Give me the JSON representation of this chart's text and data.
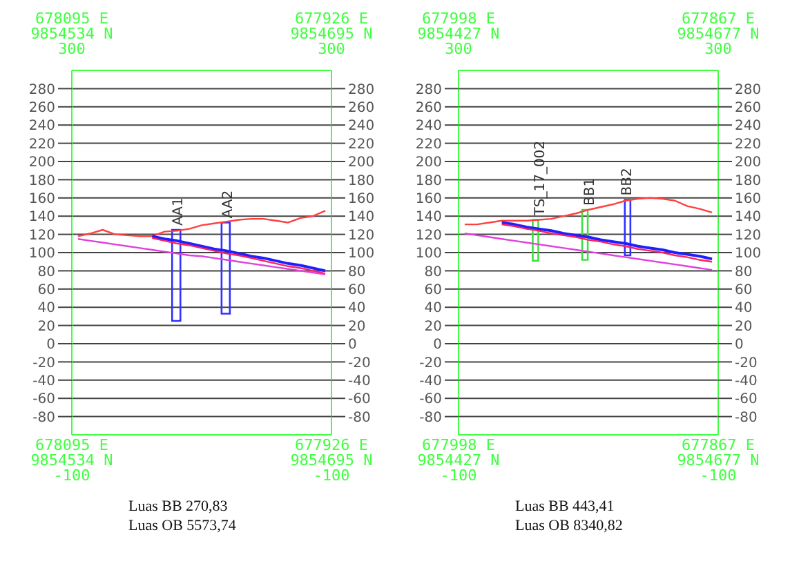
{
  "chart_data": [
    {
      "type": "line",
      "categories": [
        null,
        null,
        null,
        null,
        null,
        null,
        null,
        null,
        null,
        null,
        null,
        null,
        null,
        null,
        null,
        null,
        null,
        null,
        null,
        null,
        null
      ],
      "series": [
        {
          "color": "#ff4040",
          "values": [
            118,
            121,
            125,
            120,
            119,
            118,
            118,
            123,
            124,
            126,
            130,
            132,
            134,
            136,
            137,
            137,
            135,
            133,
            138,
            140,
            146
          ]
        },
        {
          "color": "#2020ff",
          "values": [
            null,
            null,
            null,
            null,
            null,
            null,
            118,
            115,
            113,
            110,
            107,
            104,
            102,
            99,
            96,
            94,
            91,
            88,
            86,
            83,
            80
          ]
        },
        {
          "color": "#ff2060",
          "values": [
            null,
            null,
            null,
            null,
            null,
            null,
            116,
            113,
            110,
            108,
            105,
            102,
            99,
            97,
            94,
            91,
            88,
            85,
            83,
            80,
            77
          ]
        },
        {
          "color": "#e040e0",
          "values": [
            115,
            113,
            111,
            109,
            107,
            105,
            103,
            101,
            99,
            97,
            96,
            94,
            92,
            90,
            88,
            86,
            84,
            82,
            80,
            78,
            76
          ]
        },
        {
          "type": "bar",
          "color": "#3030ff",
          "values": [
            null,
            null,
            null,
            null,
            null,
            null,
            null,
            null,
            100,
            null,
            null,
            null,
            100,
            null,
            null,
            null,
            null,
            null,
            null,
            null,
            null
          ],
          "base": [
            null,
            null,
            null,
            null,
            null,
            null,
            null,
            null,
            25,
            null,
            null,
            null,
            33,
            null,
            null,
            null,
            null,
            null,
            null,
            null,
            null
          ]
        }
      ],
      "ylim": [
        -100,
        300
      ],
      "yticks": [
        -80,
        -60,
        -40,
        -20,
        0,
        20,
        40,
        60,
        80,
        100,
        120,
        140,
        160,
        180,
        200,
        220,
        240,
        260,
        280
      ],
      "y2lim": [
        -100,
        300
      ],
      "y2ticks": [
        -80,
        -60,
        -40,
        -20,
        0,
        20,
        40,
        60,
        80,
        100,
        120,
        140,
        160,
        180,
        200,
        220,
        240,
        260,
        280
      ],
      "grid": "y",
      "tick_labels": "y",
      "annotations": [
        "678095 E\n9854534 N\n300",
        "677926 E\n9854695 N\n300",
        "678095 E\n9854534 N\n-100",
        "677926 E\n9854695 N\n-100",
        "Luas BB 270,83\nLuas OB 5573,74",
        {
          "text": "AA1",
          "y": 125
        },
        {
          "text": "AA2",
          "y": 133
        }
      ]
    },
    {
      "type": "line",
      "categories": [
        null,
        null,
        null,
        null,
        null,
        null,
        null,
        null,
        null,
        null,
        null,
        null,
        null,
        null,
        null,
        null,
        null,
        null,
        null,
        null,
        null
      ],
      "series": [
        {
          "color": "#ff4040",
          "values": [
            131,
            131,
            133,
            135,
            135,
            135,
            136,
            137,
            140,
            143,
            147,
            150,
            153,
            157,
            159,
            160,
            159,
            157,
            151,
            148,
            144
          ]
        },
        {
          "color": "#2020ff",
          "values": [
            null,
            null,
            null,
            133,
            131,
            128,
            126,
            124,
            121,
            119,
            117,
            114,
            112,
            110,
            107,
            105,
            103,
            100,
            98,
            96,
            93
          ]
        },
        {
          "color": "#ff2060",
          "values": [
            null,
            null,
            null,
            131,
            129,
            126,
            124,
            121,
            119,
            117,
            114,
            112,
            109,
            107,
            104,
            102,
            100,
            97,
            95,
            92,
            90
          ]
        },
        {
          "color": "#e040e0",
          "values": [
            121,
            119,
            117,
            115,
            113,
            111,
            109,
            107,
            105,
            103,
            101,
            99,
            97,
            95,
            93,
            91,
            89,
            87,
            85,
            83,
            81
          ]
        },
        {
          "type": "bar",
          "color": "#40e040",
          "values": [
            null,
            null,
            null,
            null,
            null,
            null,
            45,
            null,
            null,
            null,
            55,
            null,
            null,
            null,
            null,
            null,
            null,
            null,
            null,
            null,
            null
          ],
          "base": [
            null,
            null,
            null,
            null,
            null,
            null,
            91,
            null,
            null,
            null,
            92,
            null,
            null,
            null,
            null,
            null,
            null,
            null,
            null,
            null,
            null
          ]
        },
        {
          "type": "bar",
          "color": "#3030ff",
          "values": [
            null,
            null,
            null,
            null,
            null,
            null,
            null,
            null,
            null,
            null,
            null,
            null,
            null,
            61,
            null,
            null,
            null,
            null,
            null,
            null,
            null
          ],
          "base": [
            null,
            null,
            null,
            null,
            null,
            null,
            null,
            null,
            null,
            null,
            null,
            null,
            null,
            97,
            null,
            null,
            null,
            null,
            null,
            null,
            null
          ]
        }
      ],
      "ylim": [
        -100,
        300
      ],
      "yticks": [
        -80,
        -60,
        -40,
        -20,
        0,
        20,
        40,
        60,
        80,
        100,
        120,
        140,
        160,
        180,
        200,
        220,
        240,
        260,
        280
      ],
      "y2lim": [
        -100,
        300
      ],
      "y2ticks": [
        -80,
        -60,
        -40,
        -20,
        0,
        20,
        40,
        60,
        80,
        100,
        120,
        140,
        160,
        180,
        200,
        220,
        240,
        260,
        280
      ],
      "grid": "y",
      "tick_labels": "y",
      "annotations": [
        "677998 E\n9854427 N\n300",
        "677867 E\n9854677 N\n300",
        "677998 E\n9854427 N\n-100",
        "677867 E\n9854677 N\n-100",
        "Luas BB 443,41\nLuas OB 8340,82",
        {
          "text": "TS_17_002",
          "y": 136
        },
        {
          "text": "BB1",
          "y": 147
        },
        {
          "text": "BB2",
          "y": 158
        }
      ]
    }
  ]
}
